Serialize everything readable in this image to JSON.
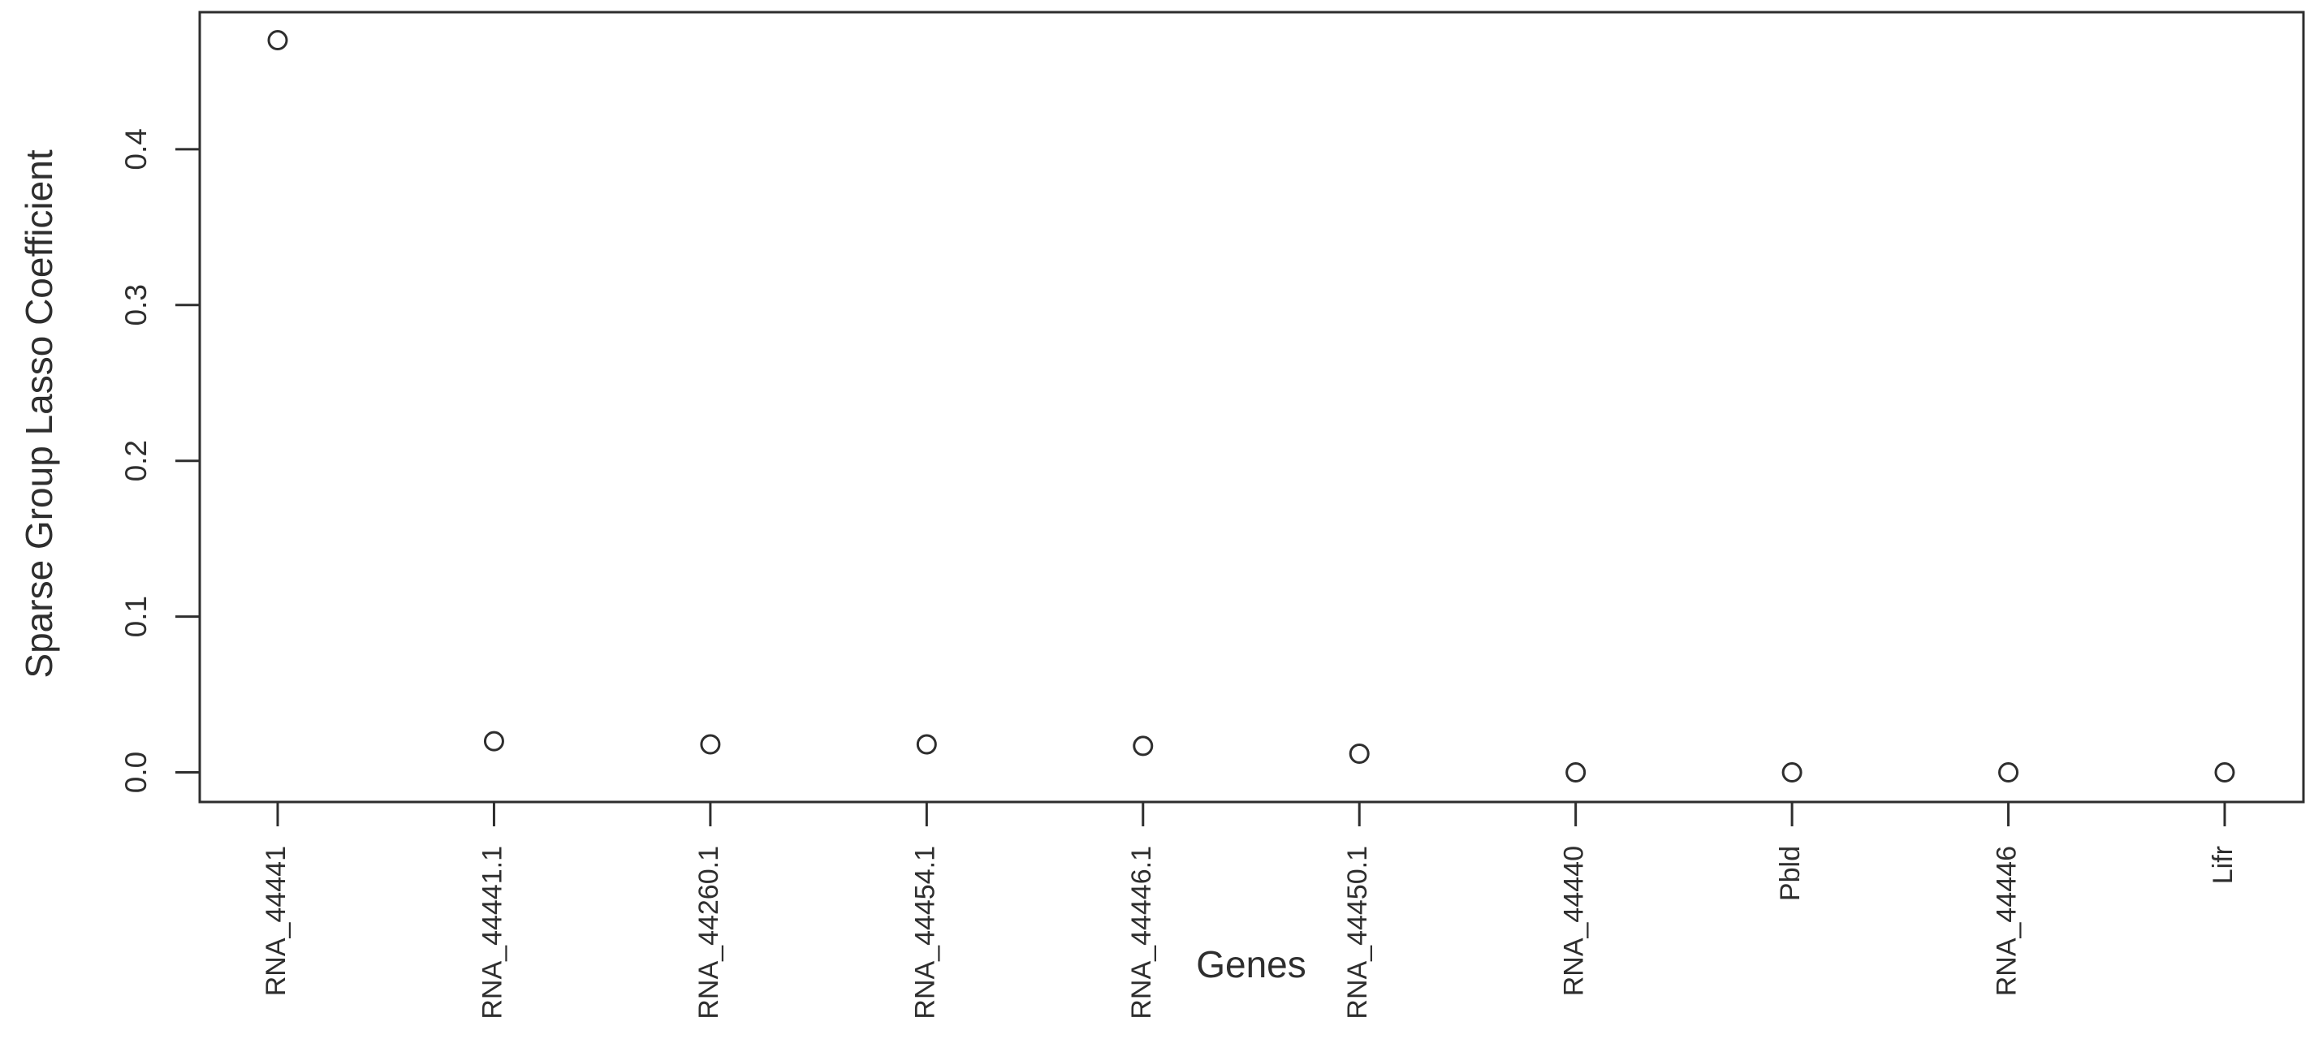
{
  "figure": {
    "background_color": "#ffffff",
    "line_color": "#2e2e2e",
    "text_color": "#2e2e2e",
    "marker": "open-circle"
  },
  "chart_data": {
    "type": "scatter",
    "title": "",
    "xlabel": "Genes",
    "ylabel": "Sparse Group Lasso Coefficient",
    "categories": [
      "RNA_44441",
      "RNA_44441.1",
      "RNA_44260.1",
      "RNA_44454.1",
      "RNA_44446.1",
      "RNA_44450.1",
      "RNA_44440",
      "Pbld",
      "RNA_44446",
      "Lifr"
    ],
    "values": [
      0.47,
      0.02,
      0.018,
      0.018,
      0.017,
      0.012,
      0.0,
      0.0,
      0.0,
      0.0
    ],
    "yticks": [
      0.0,
      0.1,
      0.2,
      0.3,
      0.4
    ],
    "ytick_labels": [
      "0.0",
      "0.1",
      "0.2",
      "0.3",
      "0.4"
    ],
    "ylim": [
      -0.019,
      0.488
    ],
    "grid": false,
    "legend": "none",
    "x_label_rotation_degrees": 90,
    "y_label_rotation_degrees": 90
  }
}
